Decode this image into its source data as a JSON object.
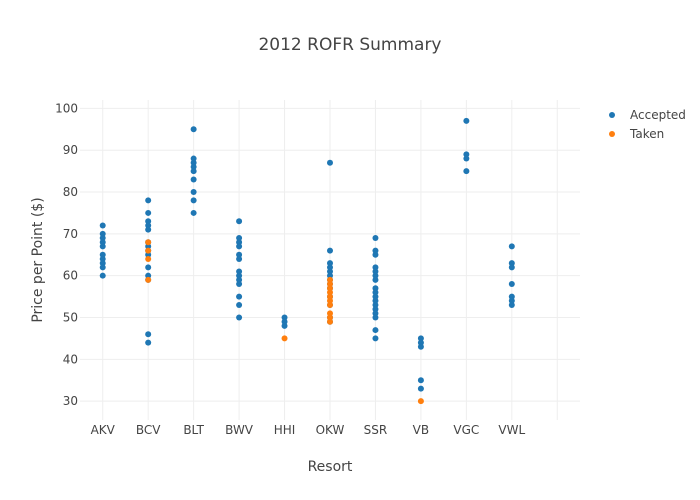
{
  "chart_data": {
    "type": "scatter",
    "title": "2012 ROFR Summary",
    "xlabel": "Resort",
    "ylabel": "Price per Point ($)",
    "categories": [
      "AKV",
      "BCV",
      "BLT",
      "BWV",
      "HHI",
      "OKW",
      "SSR",
      "VB",
      "VGC",
      "VWL"
    ],
    "y_ticks": [
      30,
      40,
      50,
      60,
      70,
      80,
      90,
      100
    ],
    "ylim": [
      25.5,
      102
    ],
    "grid": true,
    "legend_position": "top-right",
    "series": [
      {
        "name": "Accepted",
        "color": "#1f77b4",
        "points": [
          [
            "AKV",
            72
          ],
          [
            "AKV",
            70
          ],
          [
            "AKV",
            69
          ],
          [
            "AKV",
            68
          ],
          [
            "AKV",
            67
          ],
          [
            "AKV",
            65
          ],
          [
            "AKV",
            64
          ],
          [
            "AKV",
            63
          ],
          [
            "AKV",
            62
          ],
          [
            "AKV",
            60
          ],
          [
            "BCV",
            78
          ],
          [
            "BCV",
            75
          ],
          [
            "BCV",
            73
          ],
          [
            "BCV",
            72
          ],
          [
            "BCV",
            71
          ],
          [
            "BCV",
            68
          ],
          [
            "BCV",
            67
          ],
          [
            "BCV",
            66
          ],
          [
            "BCV",
            65
          ],
          [
            "BCV",
            62
          ],
          [
            "BCV",
            60
          ],
          [
            "BCV",
            59
          ],
          [
            "BCV",
            46
          ],
          [
            "BCV",
            44
          ],
          [
            "BLT",
            95
          ],
          [
            "BLT",
            88
          ],
          [
            "BLT",
            87
          ],
          [
            "BLT",
            86
          ],
          [
            "BLT",
            85
          ],
          [
            "BLT",
            83
          ],
          [
            "BLT",
            80
          ],
          [
            "BLT",
            78
          ],
          [
            "BLT",
            75
          ],
          [
            "BWV",
            73
          ],
          [
            "BWV",
            69
          ],
          [
            "BWV",
            68
          ],
          [
            "BWV",
            67
          ],
          [
            "BWV",
            65
          ],
          [
            "BWV",
            64
          ],
          [
            "BWV",
            61
          ],
          [
            "BWV",
            60
          ],
          [
            "BWV",
            59
          ],
          [
            "BWV",
            58
          ],
          [
            "BWV",
            55
          ],
          [
            "BWV",
            53
          ],
          [
            "BWV",
            50
          ],
          [
            "HHI",
            50
          ],
          [
            "HHI",
            49
          ],
          [
            "HHI",
            48
          ],
          [
            "OKW",
            87
          ],
          [
            "OKW",
            66
          ],
          [
            "OKW",
            63
          ],
          [
            "OKW",
            62
          ],
          [
            "OKW",
            61
          ],
          [
            "OKW",
            60
          ],
          [
            "OKW",
            59
          ],
          [
            "OKW",
            58
          ],
          [
            "OKW",
            57
          ],
          [
            "OKW",
            55
          ],
          [
            "OKW",
            53
          ],
          [
            "OKW",
            50
          ],
          [
            "OKW",
            49
          ],
          [
            "SSR",
            69
          ],
          [
            "SSR",
            66
          ],
          [
            "SSR",
            65
          ],
          [
            "SSR",
            62
          ],
          [
            "SSR",
            61
          ],
          [
            "SSR",
            60
          ],
          [
            "SSR",
            59
          ],
          [
            "SSR",
            57
          ],
          [
            "SSR",
            56
          ],
          [
            "SSR",
            55
          ],
          [
            "SSR",
            54
          ],
          [
            "SSR",
            53
          ],
          [
            "SSR",
            52
          ],
          [
            "SSR",
            51
          ],
          [
            "SSR",
            50
          ],
          [
            "SSR",
            47
          ],
          [
            "SSR",
            45
          ],
          [
            "VB",
            45
          ],
          [
            "VB",
            44
          ],
          [
            "VB",
            43
          ],
          [
            "VB",
            35
          ],
          [
            "VB",
            33
          ],
          [
            "VGC",
            97
          ],
          [
            "VGC",
            89
          ],
          [
            "VGC",
            88
          ],
          [
            "VGC",
            85
          ],
          [
            "VWL",
            67
          ],
          [
            "VWL",
            63
          ],
          [
            "VWL",
            62
          ],
          [
            "VWL",
            58
          ],
          [
            "VWL",
            55
          ],
          [
            "VWL",
            54
          ],
          [
            "VWL",
            53
          ]
        ]
      },
      {
        "name": "Taken",
        "color": "#ff7f0e",
        "points": [
          [
            "BCV",
            68
          ],
          [
            "BCV",
            66
          ],
          [
            "BCV",
            64
          ],
          [
            "BCV",
            59
          ],
          [
            "HHI",
            45
          ],
          [
            "OKW",
            59
          ],
          [
            "OKW",
            58
          ],
          [
            "OKW",
            57
          ],
          [
            "OKW",
            56
          ],
          [
            "OKW",
            55
          ],
          [
            "OKW",
            54
          ],
          [
            "OKW",
            53
          ],
          [
            "OKW",
            51
          ],
          [
            "OKW",
            50
          ],
          [
            "OKW",
            49
          ],
          [
            "VB",
            30
          ]
        ]
      }
    ]
  }
}
